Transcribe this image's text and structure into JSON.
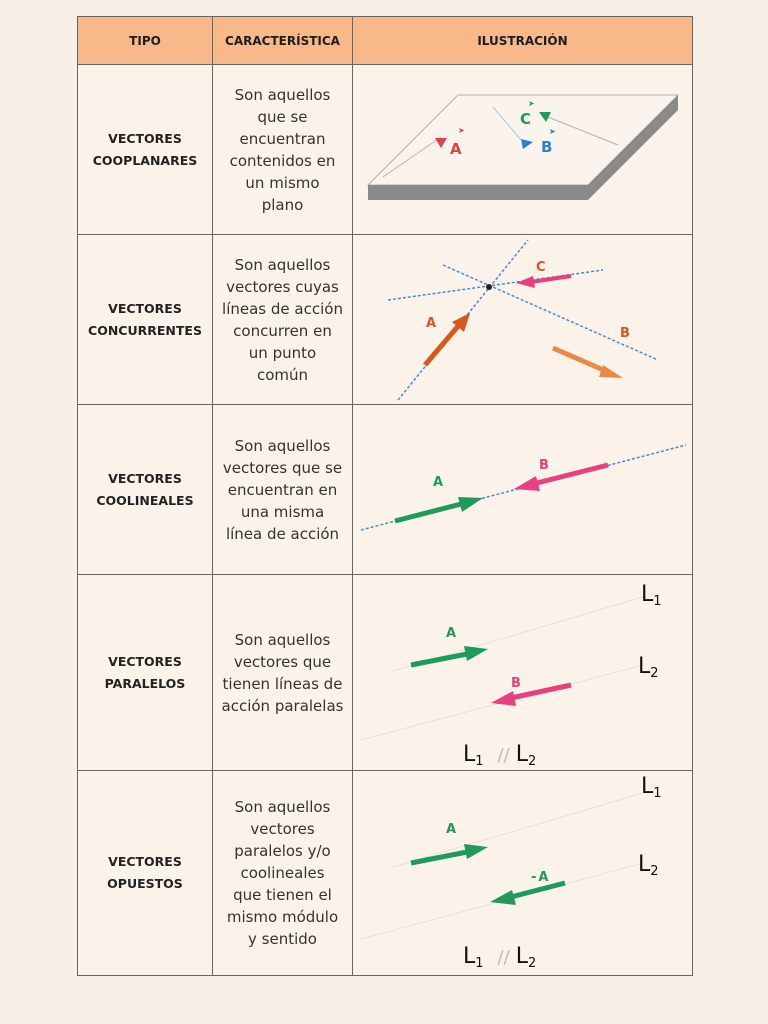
{
  "header": {
    "tipo": "TIPO",
    "caracteristica": "CARACTERÍSTICA",
    "ilustracion": "ILUSTRACIÓN"
  },
  "rows": [
    {
      "tipo": [
        "VECTORES",
        "COOPLANARES"
      ],
      "caracteristica": [
        "Son aquellos",
        "que se",
        "encuentran",
        "contenidos en",
        "un mismo",
        "plano"
      ],
      "labels": {
        "a": "A",
        "b": "B",
        "c": "C"
      }
    },
    {
      "tipo": [
        "VECTORES",
        "CONCURRENTES"
      ],
      "caracteristica": [
        "Son aquellos",
        "vectores cuyas",
        "líneas de acción",
        "concurren en",
        "un punto",
        "común"
      ],
      "labels": {
        "a": "A",
        "b": "B",
        "c": "C"
      }
    },
    {
      "tipo": [
        "VECTORES",
        "COOLINEALES"
      ],
      "caracteristica": [
        "Son aquellos",
        "vectores que se",
        "encuentran en",
        "una misma",
        "línea de acción"
      ],
      "labels": {
        "a": "A",
        "b": "B"
      }
    },
    {
      "tipo": [
        "VECTORES",
        "PARALELOS"
      ],
      "caracteristica": [
        "Son aquellos",
        "vectores que",
        "tienen líneas de",
        "acción paralelas"
      ],
      "labels": {
        "a": "A",
        "b": "B",
        "l": "L",
        "sub1": "1",
        "sub2": "2",
        "par": "//"
      }
    },
    {
      "tipo": [
        "VECTORES",
        "OPUESTOS"
      ],
      "caracteristica": [
        "Son aquellos",
        "vectores",
        "paralelos y/o",
        "coolineales",
        "que tienen el",
        "mismo módulo",
        "y sentido"
      ],
      "labels": {
        "a": "A",
        "neg": "-",
        "l": "L",
        "sub1": "1",
        "sub2": "2",
        "par": "//"
      }
    }
  ],
  "colors": {
    "header_bg": "#f7b98a",
    "red": "#e0404a",
    "blue": "#2f7fd0",
    "green": "#1f9a5a",
    "magenta": "#e8407e",
    "orange": "#e88a46",
    "dark_orange": "#d9561c",
    "plane_edge": "#8a8a8a"
  }
}
